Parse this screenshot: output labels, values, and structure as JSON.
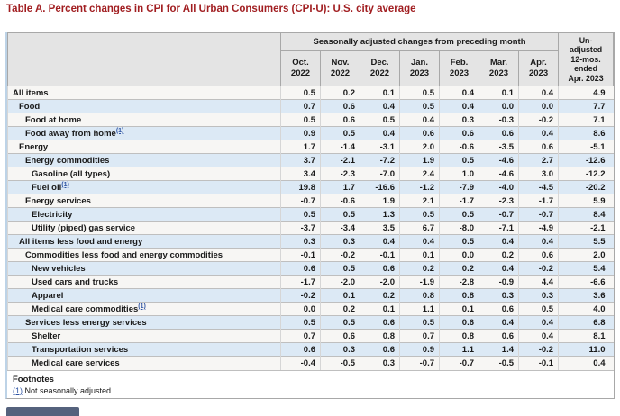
{
  "title": "Table A. Percent changes in CPI for All Urban Consumers (CPI-U): U.S. city average",
  "colors": {
    "title_text": "#a11e21",
    "header_bg": "#e4e4e4",
    "row_alt_bg": "#dce9f5",
    "link": "#2f55a4"
  },
  "table": {
    "group_header": "Seasonally adjusted changes from preceding month",
    "unadjusted_header": "Un-\nadjusted\n12-mos.\nended\nApr. 2023",
    "columns": [
      "Oct.\n2022",
      "Nov.\n2022",
      "Dec.\n2022",
      "Jan.\n2023",
      "Feb.\n2023",
      "Mar.\n2023",
      "Apr.\n2023"
    ],
    "rows": [
      {
        "label": "All items",
        "indent": 0,
        "values": [
          "0.5",
          "0.2",
          "0.1",
          "0.5",
          "0.4",
          "0.1",
          "0.4",
          "4.9"
        ]
      },
      {
        "label": "Food",
        "indent": 1,
        "values": [
          "0.7",
          "0.6",
          "0.4",
          "0.5",
          "0.4",
          "0.0",
          "0.0",
          "7.7"
        ]
      },
      {
        "label": "Food at home",
        "indent": 2,
        "values": [
          "0.5",
          "0.6",
          "0.5",
          "0.4",
          "0.3",
          "-0.3",
          "-0.2",
          "7.1"
        ]
      },
      {
        "label": "Food away from home",
        "footnote_ref": "(1)",
        "indent": 2,
        "values": [
          "0.9",
          "0.5",
          "0.4",
          "0.6",
          "0.6",
          "0.6",
          "0.4",
          "8.6"
        ]
      },
      {
        "label": "Energy",
        "indent": 1,
        "values": [
          "1.7",
          "-1.4",
          "-3.1",
          "2.0",
          "-0.6",
          "-3.5",
          "0.6",
          "-5.1"
        ]
      },
      {
        "label": "Energy commodities",
        "indent": 2,
        "values": [
          "3.7",
          "-2.1",
          "-7.2",
          "1.9",
          "0.5",
          "-4.6",
          "2.7",
          "-12.6"
        ]
      },
      {
        "label": "Gasoline (all types)",
        "indent": 3,
        "values": [
          "3.4",
          "-2.3",
          "-7.0",
          "2.4",
          "1.0",
          "-4.6",
          "3.0",
          "-12.2"
        ]
      },
      {
        "label": "Fuel oil",
        "footnote_ref": "(1)",
        "indent": 3,
        "values": [
          "19.8",
          "1.7",
          "-16.6",
          "-1.2",
          "-7.9",
          "-4.0",
          "-4.5",
          "-20.2"
        ]
      },
      {
        "label": "Energy services",
        "indent": 2,
        "values": [
          "-0.7",
          "-0.6",
          "1.9",
          "2.1",
          "-1.7",
          "-2.3",
          "-1.7",
          "5.9"
        ]
      },
      {
        "label": "Electricity",
        "indent": 3,
        "values": [
          "0.5",
          "0.5",
          "1.3",
          "0.5",
          "0.5",
          "-0.7",
          "-0.7",
          "8.4"
        ]
      },
      {
        "label": "Utility (piped) gas service",
        "indent": 3,
        "values": [
          "-3.7",
          "-3.4",
          "3.5",
          "6.7",
          "-8.0",
          "-7.1",
          "-4.9",
          "-2.1"
        ]
      },
      {
        "label": "All items less food and energy",
        "indent": 1,
        "values": [
          "0.3",
          "0.3",
          "0.4",
          "0.4",
          "0.5",
          "0.4",
          "0.4",
          "5.5"
        ]
      },
      {
        "label": "Commodities less food and energy commodities",
        "indent": 2,
        "values": [
          "-0.1",
          "-0.2",
          "-0.1",
          "0.1",
          "0.0",
          "0.2",
          "0.6",
          "2.0"
        ]
      },
      {
        "label": "New vehicles",
        "indent": 3,
        "values": [
          "0.6",
          "0.5",
          "0.6",
          "0.2",
          "0.2",
          "0.4",
          "-0.2",
          "5.4"
        ]
      },
      {
        "label": "Used cars and trucks",
        "indent": 3,
        "values": [
          "-1.7",
          "-2.0",
          "-2.0",
          "-1.9",
          "-2.8",
          "-0.9",
          "4.4",
          "-6.6"
        ]
      },
      {
        "label": "Apparel",
        "indent": 3,
        "values": [
          "-0.2",
          "0.1",
          "0.2",
          "0.8",
          "0.8",
          "0.3",
          "0.3",
          "3.6"
        ]
      },
      {
        "label": "Medical care commodities",
        "footnote_ref": "(1)",
        "indent": 3,
        "values": [
          "0.0",
          "0.2",
          "0.1",
          "1.1",
          "0.1",
          "0.6",
          "0.5",
          "4.0"
        ]
      },
      {
        "label": "Services less energy services",
        "indent": 2,
        "values": [
          "0.5",
          "0.5",
          "0.6",
          "0.5",
          "0.6",
          "0.4",
          "0.4",
          "6.8"
        ]
      },
      {
        "label": "Shelter",
        "indent": 3,
        "values": [
          "0.7",
          "0.6",
          "0.8",
          "0.7",
          "0.8",
          "0.6",
          "0.4",
          "8.1"
        ]
      },
      {
        "label": "Transportation services",
        "indent": 3,
        "values": [
          "0.6",
          "0.3",
          "0.6",
          "0.9",
          "1.1",
          "1.4",
          "-0.2",
          "11.0"
        ]
      },
      {
        "label": "Medical care services",
        "indent": 3,
        "values": [
          "-0.4",
          "-0.5",
          "0.3",
          "-0.7",
          "-0.7",
          "-0.5",
          "-0.1",
          "0.4"
        ]
      }
    ]
  },
  "footnotes": {
    "title": "Footnotes",
    "items": [
      {
        "marker": "(1)",
        "text": " Not seasonally adjusted."
      }
    ]
  }
}
